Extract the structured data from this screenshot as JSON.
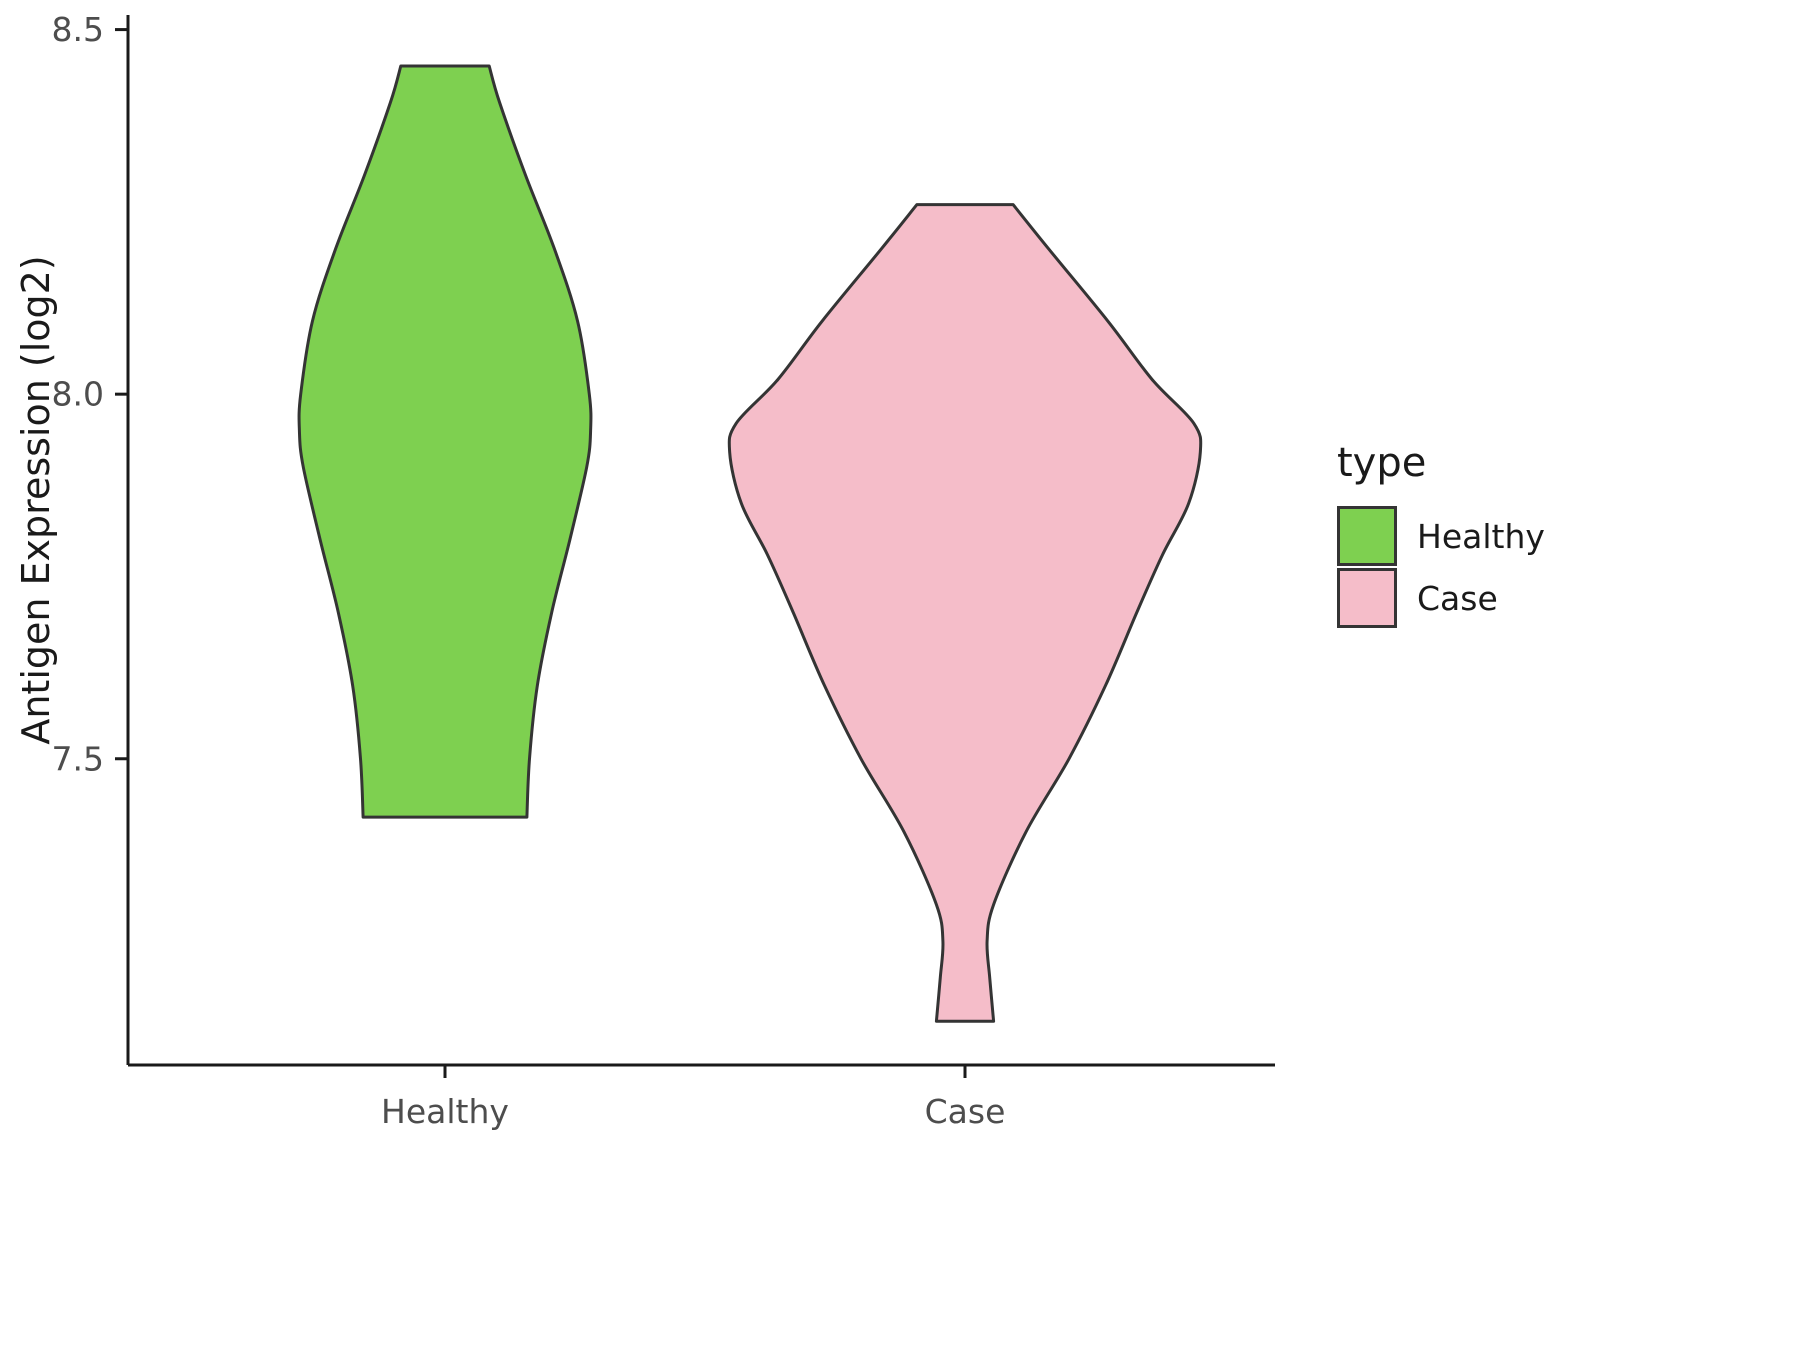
{
  "chart_data": {
    "type": "violin",
    "title": "",
    "xlabel": "",
    "ylabel": "Antigen Expression (log2)",
    "categories": [
      "Healthy",
      "Case"
    ],
    "ylim": [
      7.08,
      8.52
    ],
    "y_ticks": [
      {
        "label": "7.5",
        "value": 7.5
      },
      {
        "label": "8.0",
        "value": 8.0
      },
      {
        "label": "8.5",
        "value": 8.5
      }
    ],
    "grid": "off",
    "axis_color": "#1a1a1a",
    "tick_label_color": "#4d4d4d",
    "stroke_color": "#343434",
    "legend": {
      "title": "type",
      "position": "right",
      "entries": [
        {
          "label": "Healthy",
          "color": "#7ed050"
        },
        {
          "label": "Case",
          "color": "#f5bdc9"
        }
      ]
    },
    "series": [
      {
        "name": "Healthy",
        "color": "#7ed050",
        "value_range": [
          7.42,
          8.45
        ],
        "profile": [
          [
            8.45,
            0.17
          ],
          [
            8.4,
            0.21
          ],
          [
            8.3,
            0.31
          ],
          [
            8.2,
            0.42
          ],
          [
            8.1,
            0.51
          ],
          [
            8.0,
            0.555
          ],
          [
            7.95,
            0.56
          ],
          [
            7.9,
            0.545
          ],
          [
            7.8,
            0.48
          ],
          [
            7.7,
            0.41
          ],
          [
            7.6,
            0.355
          ],
          [
            7.5,
            0.325
          ],
          [
            7.42,
            0.315
          ]
        ]
      },
      {
        "name": "Case",
        "color": "#f5bdc9",
        "value_range": [
          7.14,
          8.26
        ],
        "profile": [
          [
            8.26,
            0.185
          ],
          [
            8.2,
            0.32
          ],
          [
            8.1,
            0.55
          ],
          [
            8.02,
            0.72
          ],
          [
            7.96,
            0.88
          ],
          [
            7.92,
            0.905
          ],
          [
            7.85,
            0.86
          ],
          [
            7.78,
            0.76
          ],
          [
            7.7,
            0.66
          ],
          [
            7.6,
            0.54
          ],
          [
            7.5,
            0.4
          ],
          [
            7.4,
            0.235
          ],
          [
            7.3,
            0.11
          ],
          [
            7.25,
            0.085
          ],
          [
            7.2,
            0.095
          ],
          [
            7.14,
            0.11
          ]
        ]
      }
    ]
  }
}
